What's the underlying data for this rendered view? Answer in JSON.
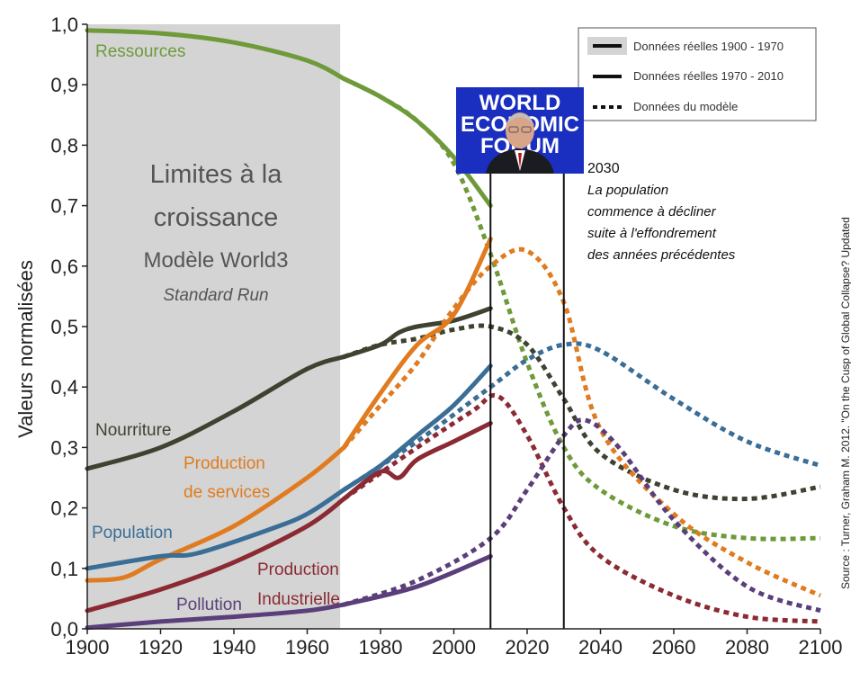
{
  "chart_data": {
    "type": "line",
    "ylabel": "Valeurs normalisées",
    "xlim": [
      1900,
      2100
    ],
    "ylim": [
      0,
      1
    ],
    "x_ticks": [
      "1900",
      "1920",
      "1940",
      "1960",
      "1980",
      "2000",
      "2020",
      "2040",
      "2060",
      "2080",
      "2100"
    ],
    "y_ticks": [
      "0,0",
      "0,1",
      "0,2",
      "0,3",
      "0,4",
      "0,5",
      "0,6",
      "0,7",
      "0,8",
      "0,9",
      "1,0"
    ],
    "title_lines": [
      "Limites à la",
      "croissance",
      "Modèle World3",
      "Standard Run"
    ],
    "legend": [
      {
        "label": "Données réelles 1900 - 1970",
        "style": "solid-shaded"
      },
      {
        "label": "Données réelles 1970 - 2010",
        "style": "solid"
      },
      {
        "label": "Données du modèle",
        "style": "dotted"
      }
    ],
    "annotation": {
      "year": "2030",
      "lines": [
        "La population",
        "commence à décliner",
        "suite à l'effondrement",
        "des années précédentes"
      ]
    },
    "source": "Source : Turner, Graham M. 2012. \"On the Cusp of Global Collapse? Updated",
    "logo_text": [
      "WORLD",
      "ECONOMIC",
      "FORUM"
    ],
    "shaded_range": [
      1900,
      1969
    ],
    "vlines": [
      2010,
      2030
    ],
    "series": [
      {
        "name": "Ressources",
        "color": "#6e9a3a",
        "real": [
          [
            1900,
            0.99
          ],
          [
            1920,
            0.985
          ],
          [
            1940,
            0.97
          ],
          [
            1960,
            0.94
          ],
          [
            1970,
            0.91
          ]
        ],
        "real2": [
          [
            1970,
            0.91
          ],
          [
            1980,
            0.88
          ],
          [
            1990,
            0.84
          ],
          [
            2000,
            0.78
          ],
          [
            2010,
            0.7
          ]
        ],
        "model": [
          [
            1970,
            0.91
          ],
          [
            1980,
            0.88
          ],
          [
            1990,
            0.84
          ],
          [
            2000,
            0.77
          ],
          [
            2010,
            0.62
          ],
          [
            2020,
            0.44
          ],
          [
            2030,
            0.3
          ],
          [
            2040,
            0.23
          ],
          [
            2060,
            0.17
          ],
          [
            2080,
            0.15
          ],
          [
            2100,
            0.15
          ]
        ]
      },
      {
        "name": "Nourriture",
        "color": "#3d4330",
        "real": [
          [
            1900,
            0.265
          ],
          [
            1920,
            0.3
          ],
          [
            1940,
            0.36
          ],
          [
            1960,
            0.43
          ],
          [
            1970,
            0.45
          ]
        ],
        "real2": [
          [
            1970,
            0.45
          ],
          [
            1980,
            0.47
          ],
          [
            1985,
            0.49
          ],
          [
            1990,
            0.5
          ],
          [
            2000,
            0.51
          ],
          [
            2010,
            0.53
          ]
        ],
        "model": [
          [
            1970,
            0.45
          ],
          [
            1980,
            0.47
          ],
          [
            1990,
            0.48
          ],
          [
            2000,
            0.495
          ],
          [
            2010,
            0.5
          ],
          [
            2020,
            0.47
          ],
          [
            2030,
            0.38
          ],
          [
            2040,
            0.29
          ],
          [
            2060,
            0.23
          ],
          [
            2080,
            0.215
          ],
          [
            2100,
            0.235
          ]
        ]
      },
      {
        "name": "Production de services",
        "color": "#e07b20",
        "real": [
          [
            1900,
            0.08
          ],
          [
            1910,
            0.085
          ],
          [
            1920,
            0.115
          ],
          [
            1940,
            0.17
          ],
          [
            1960,
            0.25
          ],
          [
            1970,
            0.3
          ]
        ],
        "real2": [
          [
            1970,
            0.3
          ],
          [
            1980,
            0.39
          ],
          [
            1990,
            0.47
          ],
          [
            2000,
            0.52
          ],
          [
            2010,
            0.645
          ]
        ],
        "model": [
          [
            1970,
            0.3
          ],
          [
            1980,
            0.37
          ],
          [
            1990,
            0.44
          ],
          [
            2000,
            0.53
          ],
          [
            2010,
            0.6
          ],
          [
            2020,
            0.625
          ],
          [
            2030,
            0.54
          ],
          [
            2040,
            0.33
          ],
          [
            2060,
            0.19
          ],
          [
            2080,
            0.11
          ],
          [
            2100,
            0.055
          ]
        ]
      },
      {
        "name": "Population",
        "color": "#3a6e96",
        "real": [
          [
            1900,
            0.1
          ],
          [
            1920,
            0.12
          ],
          [
            1930,
            0.125
          ],
          [
            1950,
            0.165
          ],
          [
            1960,
            0.19
          ],
          [
            1970,
            0.23
          ]
        ],
        "real2": [
          [
            1970,
            0.23
          ],
          [
            1980,
            0.27
          ],
          [
            1990,
            0.32
          ],
          [
            2000,
            0.37
          ],
          [
            2010,
            0.435
          ]
        ],
        "model": [
          [
            1970,
            0.23
          ],
          [
            1990,
            0.31
          ],
          [
            2010,
            0.4
          ],
          [
            2020,
            0.445
          ],
          [
            2030,
            0.47
          ],
          [
            2040,
            0.46
          ],
          [
            2060,
            0.38
          ],
          [
            2080,
            0.31
          ],
          [
            2100,
            0.27
          ]
        ]
      },
      {
        "name": "Production Industrielle",
        "color": "#8b2a33",
        "real": [
          [
            1900,
            0.03
          ],
          [
            1920,
            0.065
          ],
          [
            1940,
            0.11
          ],
          [
            1960,
            0.17
          ],
          [
            1970,
            0.215
          ]
        ],
        "real2": [
          [
            1970,
            0.215
          ],
          [
            1980,
            0.26
          ],
          [
            1985,
            0.25
          ],
          [
            1990,
            0.28
          ],
          [
            2000,
            0.31
          ],
          [
            2010,
            0.34
          ]
        ],
        "model": [
          [
            1970,
            0.215
          ],
          [
            1990,
            0.3
          ],
          [
            2005,
            0.36
          ],
          [
            2012,
            0.385
          ],
          [
            2020,
            0.32
          ],
          [
            2030,
            0.2
          ],
          [
            2040,
            0.12
          ],
          [
            2060,
            0.055
          ],
          [
            2080,
            0.02
          ],
          [
            2100,
            0.012
          ]
        ]
      },
      {
        "name": "Pollution",
        "color": "#5a3f7a",
        "real": [
          [
            1900,
            0.002
          ],
          [
            1920,
            0.012
          ],
          [
            1940,
            0.02
          ],
          [
            1960,
            0.03
          ],
          [
            1970,
            0.04
          ]
        ],
        "real2": [
          [
            1970,
            0.04
          ],
          [
            1990,
            0.07
          ],
          [
            2010,
            0.12
          ]
        ],
        "model": [
          [
            1970,
            0.04
          ],
          [
            1990,
            0.08
          ],
          [
            2010,
            0.15
          ],
          [
            2020,
            0.23
          ],
          [
            2030,
            0.32
          ],
          [
            2036,
            0.345
          ],
          [
            2045,
            0.3
          ],
          [
            2060,
            0.18
          ],
          [
            2080,
            0.07
          ],
          [
            2100,
            0.03
          ]
        ]
      }
    ],
    "series_labels": [
      "Ressources",
      "Nourriture",
      "Production",
      "de services",
      "Population",
      "Production",
      "Industrielle",
      "Pollution"
    ]
  }
}
